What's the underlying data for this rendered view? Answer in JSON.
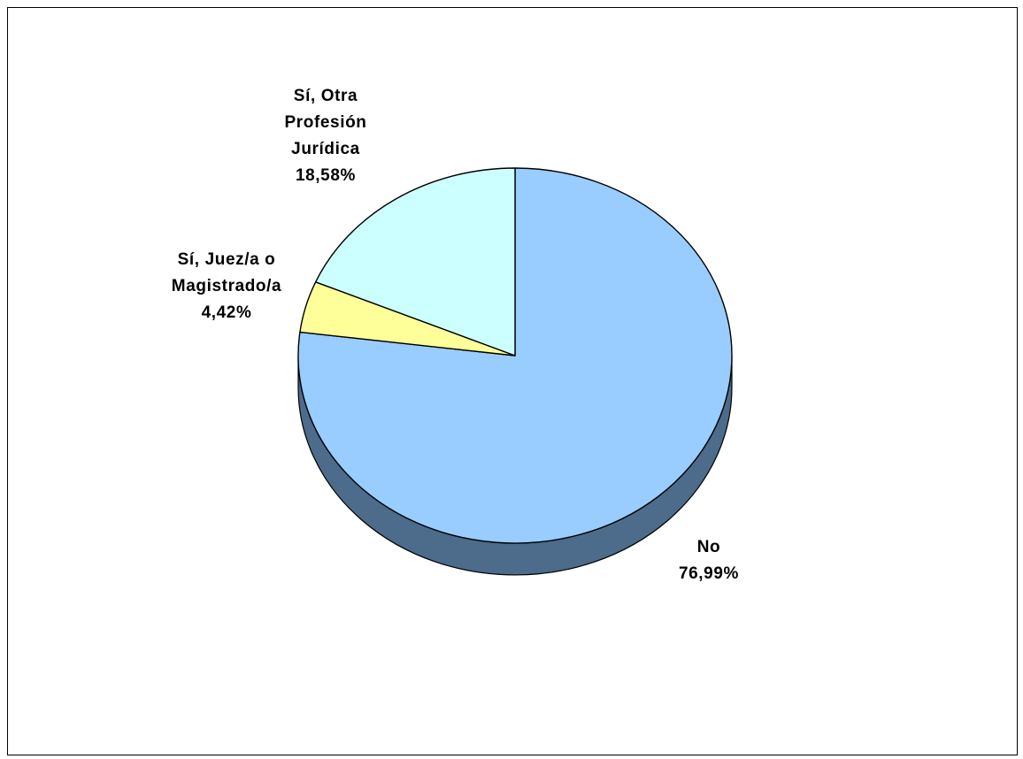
{
  "chart_data": {
    "type": "pie",
    "style": "3d",
    "categories": [
      "No",
      "Sí, Juez/a o Magistrado/a",
      "Sí, Otra Profesión Jurídica"
    ],
    "values": [
      76.99,
      4.42,
      18.58
    ],
    "labels": [
      {
        "lines": [
          "No"
        ],
        "value_text": "76,99%"
      },
      {
        "lines": [
          "Sí, Juez/a o",
          "Magistrado/a"
        ],
        "value_text": "4,42%"
      },
      {
        "lines": [
          "Sí, Otra",
          "Profesión",
          "Jurídica"
        ],
        "value_text": "18,58%"
      }
    ],
    "colors": [
      "#99ccff",
      "#ffff99",
      "#ccffff"
    ],
    "side_color": "#4d6b8a",
    "title": "",
    "legend": "none"
  }
}
